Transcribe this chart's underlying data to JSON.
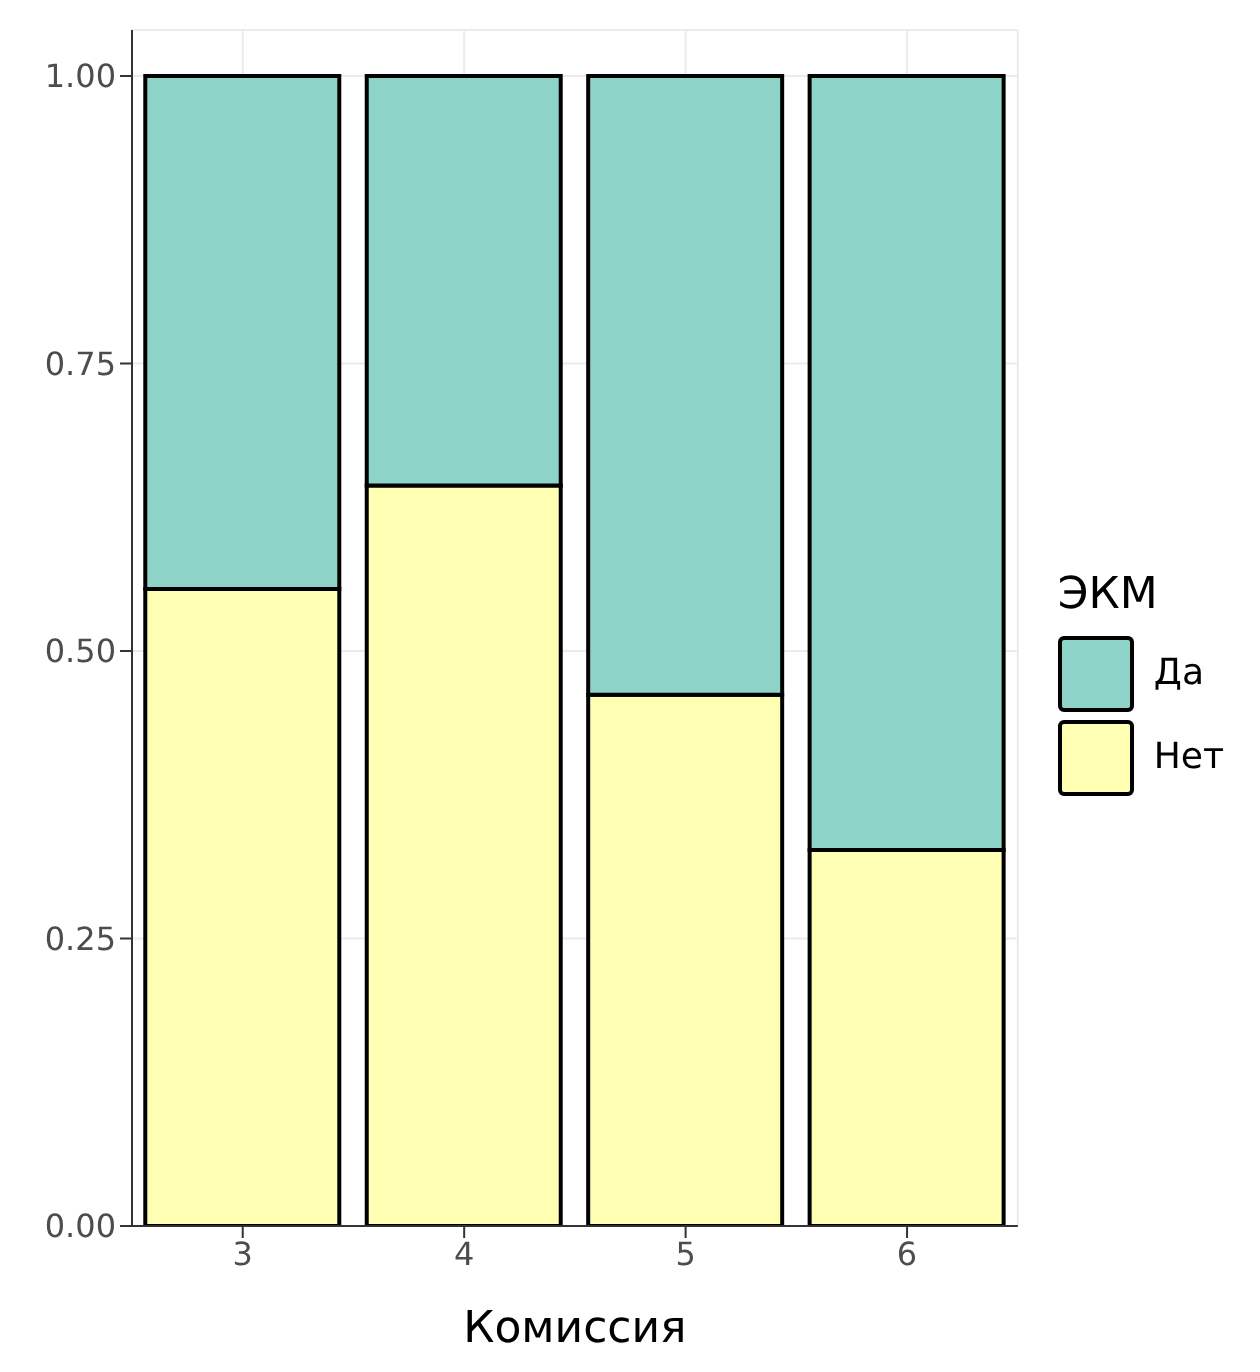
{
  "chart_data": {
    "type": "bar",
    "stacked": true,
    "xlabel": "Комиссия",
    "legend_title": "ЭКМ",
    "categories": [
      "3",
      "4",
      "5",
      "6"
    ],
    "series": [
      {
        "name": "Нет",
        "color": "#ffffb3",
        "values": [
          0.554,
          0.644,
          0.462,
          0.327
        ]
      },
      {
        "name": "Да",
        "color": "#8dd3c7",
        "values": [
          0.446,
          0.356,
          0.538,
          0.673
        ]
      }
    ],
    "ylim": [
      0,
      1.04
    ],
    "yticks": [
      {
        "value": 0,
        "label": "0.00"
      },
      {
        "value": 0.25,
        "label": "0.25"
      },
      {
        "value": 0.5,
        "label": "0.50"
      },
      {
        "value": 0.75,
        "label": "0.75"
      },
      {
        "value": 1,
        "label": "1.00"
      }
    ],
    "grid": true,
    "legend": "right"
  }
}
